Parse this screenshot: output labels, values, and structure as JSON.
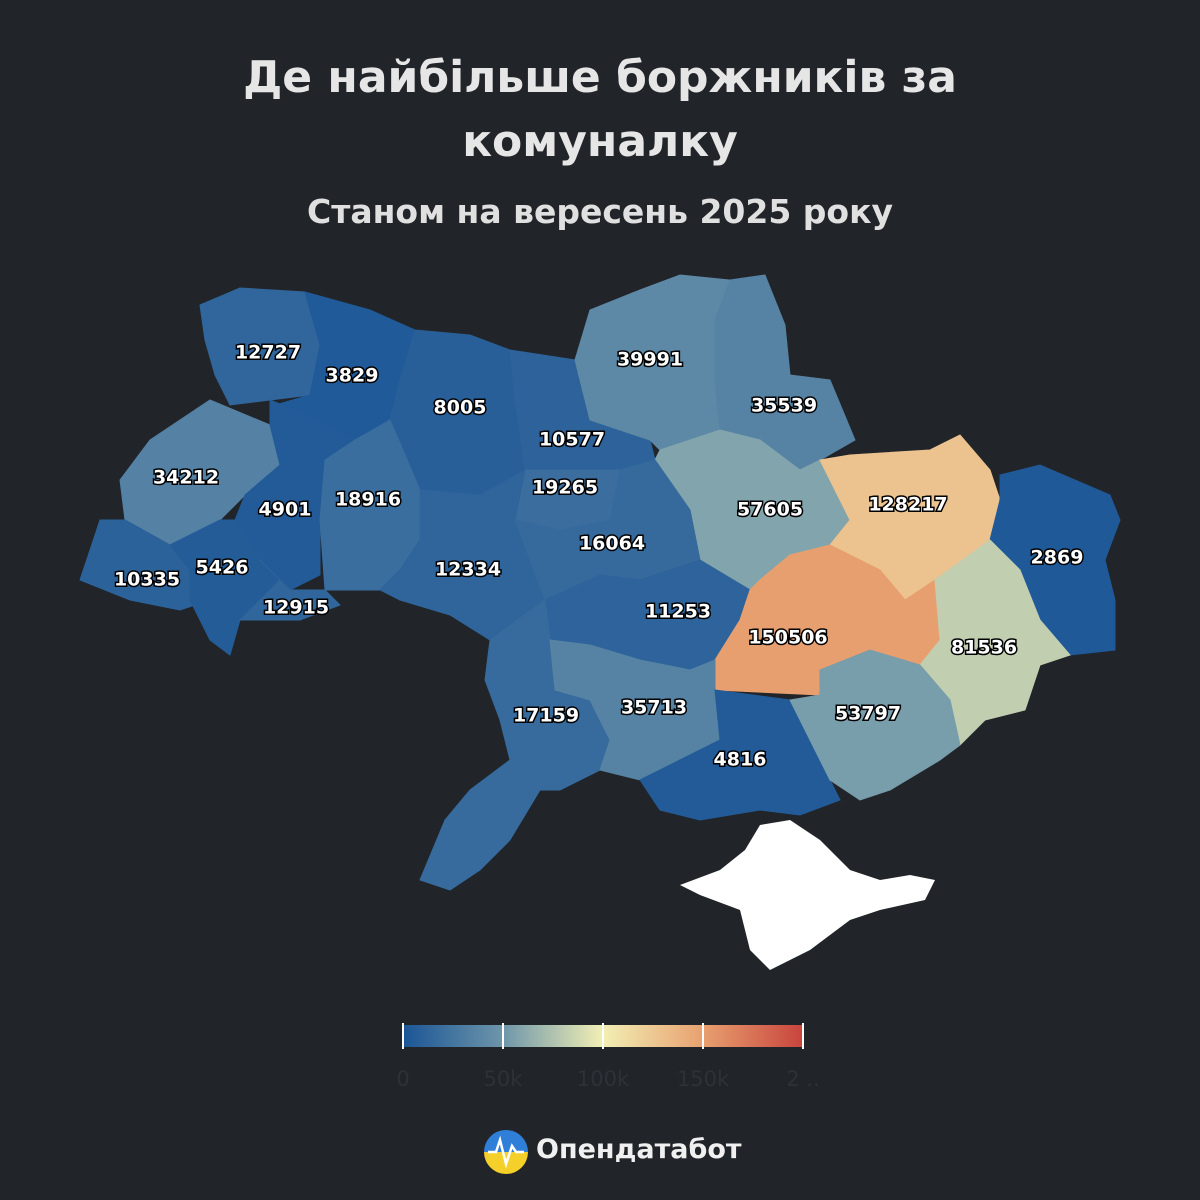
{
  "chart_data": {
    "type": "choropleth",
    "title": "Де найбільше боржників за комуналку",
    "subtitle": "Станом на вересень 2025 року",
    "values": [
      12727,
      3829,
      8005,
      10577,
      39991,
      35539,
      34212,
      4901,
      18916,
      19265,
      57605,
      128217,
      2869,
      10335,
      5426,
      12915,
      12334,
      16064,
      11253,
      150506,
      81536,
      17159,
      35713,
      4816,
      53797
    ],
    "colorscale": [
      {
        "value": 0,
        "color": "#1b5596"
      },
      {
        "value": 50000,
        "color": "#6e96aa"
      },
      {
        "value": 100000,
        "color": "#f2efb4"
      },
      {
        "value": 150000,
        "color": "#e8a070"
      },
      {
        "value": 200000,
        "color": "#c8443c"
      }
    ],
    "clim": [
      0,
      200000
    ],
    "cticks": [
      0,
      {
        "value": 50000,
        "label": "50k"
      },
      {
        "value": 100000,
        "label": "100k"
      },
      {
        "value": 150000,
        "label": "150k"
      },
      {
        "value": 200000,
        "label": "2 .."
      }
    ],
    "brand": "Опендатабот"
  }
}
